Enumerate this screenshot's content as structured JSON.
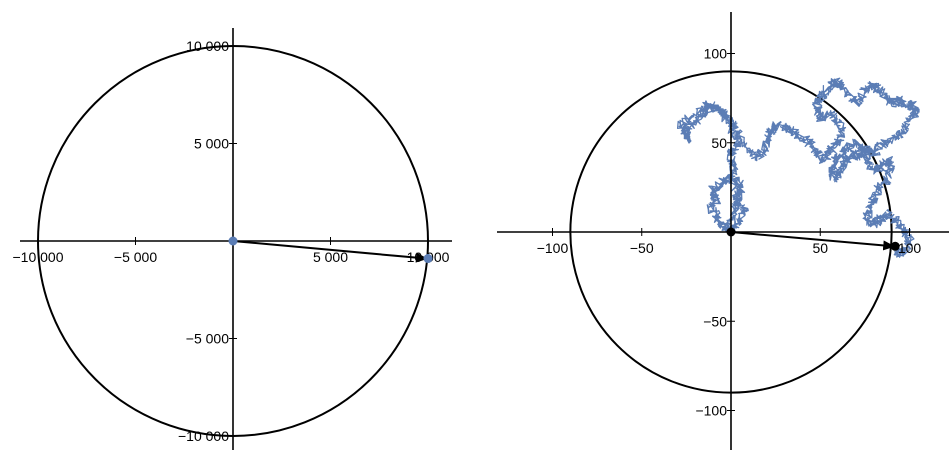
{
  "colors": {
    "series": "#5b7db5",
    "axis": "#000000",
    "arrow": "#000000"
  },
  "chart_data": [
    {
      "type": "line",
      "xlim": [
        -10500,
        10500
      ],
      "ylim": [
        -11000,
        10500
      ],
      "x_ticks": [
        {
          "value": -10000,
          "label": "−10 000"
        },
        {
          "value": -5000,
          "label": "−5 000"
        },
        {
          "value": 5000,
          "label": "5 000"
        },
        {
          "value": 10000,
          "label": "10 000"
        }
      ],
      "y_ticks": [
        {
          "value": 10000,
          "label": "10 000"
        },
        {
          "value": 5000,
          "label": "5 000"
        },
        {
          "value": -5000,
          "label": "−5 000"
        },
        {
          "value": -10000,
          "label": "−10 000"
        }
      ],
      "circle_radius": 10000,
      "points": [
        {
          "x": 0,
          "y": 0
        },
        {
          "x": 10000,
          "y": -900
        }
      ],
      "arrow": {
        "from": [
          0,
          0
        ],
        "to": [
          10000,
          -900
        ]
      },
      "grid": false
    },
    {
      "type": "line",
      "xlim": [
        -110,
        113
      ],
      "ylim": [
        -112,
        113
      ],
      "x_ticks": [
        {
          "value": -100,
          "label": "−100"
        },
        {
          "value": -50,
          "label": "−50"
        },
        {
          "value": 50,
          "label": "50"
        },
        {
          "value": 100,
          "label": "100"
        }
      ],
      "y_ticks": [
        {
          "value": 100,
          "label": "100"
        },
        {
          "value": 50,
          "label": "50"
        },
        {
          "value": -50,
          "label": "−50"
        },
        {
          "value": -100,
          "label": "−100"
        }
      ],
      "circle_radius": 90,
      "points": [
        {
          "x": 0,
          "y": 0
        },
        {
          "x": 92,
          "y": -8
        }
      ],
      "arrow": {
        "from": [
          0,
          0
        ],
        "to": [
          92,
          -8
        ]
      },
      "path_anchors": [
        [
          0,
          0
        ],
        [
          4,
          6
        ],
        [
          8,
          12
        ],
        [
          2,
          18
        ],
        [
          6,
          24
        ],
        [
          4,
          28
        ],
        [
          -2,
          30
        ],
        [
          -6,
          26
        ],
        [
          -10,
          24
        ],
        [
          -8,
          18
        ],
        [
          -12,
          14
        ],
        [
          -8,
          10
        ],
        [
          -6,
          4
        ],
        [
          -2,
          2
        ],
        [
          2,
          12
        ],
        [
          4,
          20
        ],
        [
          0,
          30
        ],
        [
          2,
          36
        ],
        [
          0,
          44
        ],
        [
          4,
          50
        ],
        [
          2,
          56
        ],
        [
          -2,
          62
        ],
        [
          -4,
          66
        ],
        [
          -8,
          70
        ],
        [
          -14,
          68
        ],
        [
          -20,
          62
        ],
        [
          -26,
          58
        ],
        [
          -24,
          52
        ],
        [
          -28,
          60
        ],
        [
          -20,
          66
        ],
        [
          -12,
          72
        ],
        [
          -6,
          68
        ],
        [
          0,
          62
        ],
        [
          4,
          54
        ],
        [
          10,
          46
        ],
        [
          16,
          42
        ],
        [
          20,
          50
        ],
        [
          22,
          56
        ],
        [
          26,
          60
        ],
        [
          32,
          58
        ],
        [
          38,
          54
        ],
        [
          44,
          50
        ],
        [
          48,
          44
        ],
        [
          52,
          40
        ],
        [
          56,
          46
        ],
        [
          60,
          50
        ],
        [
          62,
          56
        ],
        [
          60,
          62
        ],
        [
          56,
          66
        ],
        [
          50,
          64
        ],
        [
          48,
          70
        ],
        [
          50,
          76
        ],
        [
          54,
          80
        ],
        [
          58,
          84
        ],
        [
          62,
          82
        ],
        [
          66,
          76
        ],
        [
          70,
          72
        ],
        [
          74,
          78
        ],
        [
          78,
          82
        ],
        [
          82,
          80
        ],
        [
          86,
          76
        ],
        [
          90,
          72
        ],
        [
          94,
          74
        ],
        [
          98,
          70
        ],
        [
          102,
          72
        ],
        [
          104,
          68
        ],
        [
          100,
          62
        ],
        [
          96,
          56
        ],
        [
          90,
          52
        ],
        [
          84,
          48
        ],
        [
          80,
          44
        ],
        [
          76,
          46
        ],
        [
          72,
          42
        ],
        [
          68,
          44
        ],
        [
          64,
          40
        ],
        [
          62,
          34
        ],
        [
          58,
          30
        ],
        [
          56,
          36
        ],
        [
          60,
          42
        ],
        [
          64,
          46
        ],
        [
          70,
          50
        ],
        [
          74,
          46
        ],
        [
          76,
          40
        ],
        [
          80,
          34
        ],
        [
          84,
          36
        ],
        [
          88,
          40
        ],
        [
          90,
          36
        ],
        [
          88,
          30
        ],
        [
          84,
          26
        ],
        [
          80,
          20
        ],
        [
          78,
          14
        ],
        [
          76,
          8
        ],
        [
          80,
          4
        ],
        [
          84,
          8
        ],
        [
          88,
          10
        ],
        [
          92,
          6
        ],
        [
          96,
          2
        ],
        [
          100,
          -4
        ],
        [
          98,
          -10
        ],
        [
          94,
          -12
        ],
        [
          92,
          -8
        ]
      ],
      "grid": false
    }
  ]
}
